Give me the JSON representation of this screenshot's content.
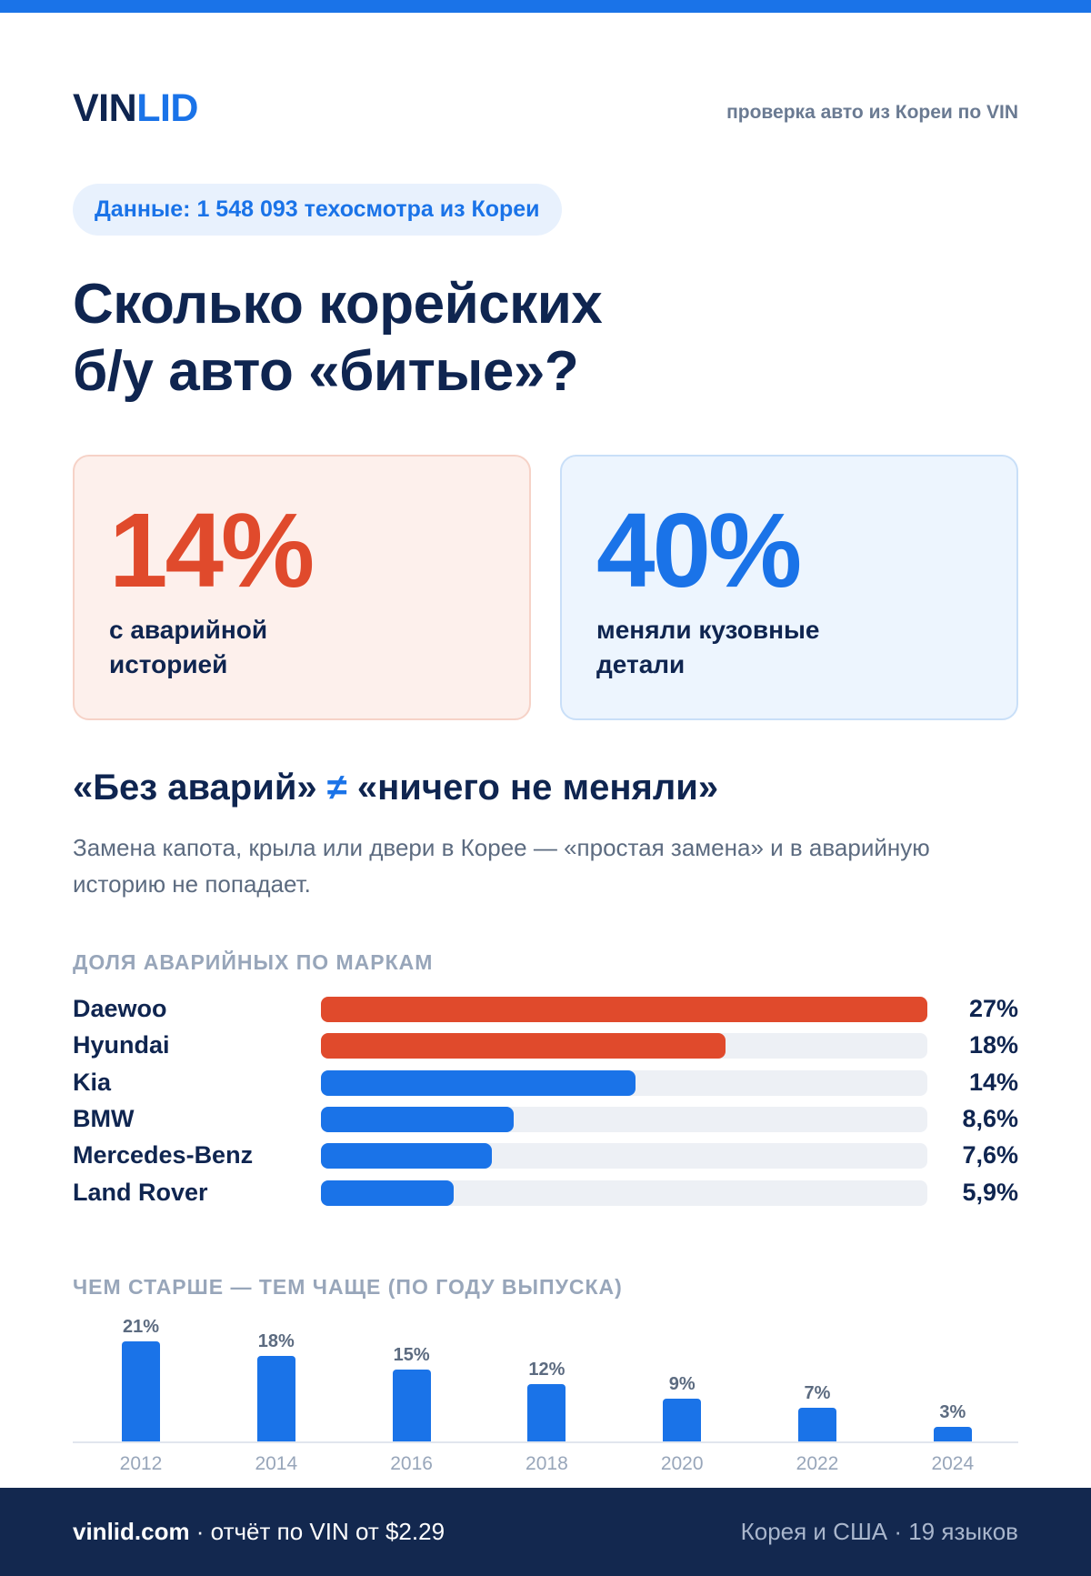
{
  "colors": {
    "accent": "#1a73e8",
    "alert": "#e04a2c",
    "navy": "#0f2550",
    "track": "#edf0f5"
  },
  "header": {
    "logo_primary": "VIN",
    "logo_accent": "LID",
    "tagline": "проверка авто из Кореи по VIN"
  },
  "data_pill": "Данные: 1 548 093 техосмотра из Кореи",
  "title": {
    "line1": "Сколько корейских",
    "line2": "б/у авто «битые»?"
  },
  "stats": [
    {
      "value": "14%",
      "label_line1": "с аварийной",
      "label_line2": "историей",
      "color": "#e04a2c"
    },
    {
      "value": "40%",
      "label_line1": "меняли кузовные",
      "label_line2": "детали",
      "color": "#1a73e8"
    }
  ],
  "subheading": {
    "left": "«Без аварий»",
    "symbol": "≠",
    "right": "«ничего не меняли»"
  },
  "description": "Замена капота, крыла или двери в Корее — «простая замена» и в аварийную историю не попадает.",
  "brands_section_title": "ДОЛЯ АВАРИЙНЫХ ПО МАРКАМ",
  "years_section_title": "ЧЕМ СТАРШЕ — ТЕМ ЧАЩЕ (ПО ГОДУ ВЫПУСКА)",
  "chart_data": [
    {
      "type": "bar",
      "orientation": "horizontal",
      "title": "ДОЛЯ АВАРИЙНЫХ ПО МАРКАМ",
      "categories": [
        "Daewoo",
        "Hyundai",
        "Kia",
        "BMW",
        "Mercedes-Benz",
        "Land Rover"
      ],
      "values": [
        27,
        18,
        14,
        8.6,
        7.6,
        5.9
      ],
      "labels": [
        "27%",
        "18%",
        "14%",
        "8,6%",
        "7,6%",
        "5,9%"
      ],
      "bar_colors": [
        "#e04a2c",
        "#e04a2c",
        "#1a73e8",
        "#1a73e8",
        "#1a73e8",
        "#1a73e8"
      ],
      "xlim": [
        0,
        27
      ],
      "grid": false
    },
    {
      "type": "bar",
      "orientation": "vertical",
      "title": "ЧЕМ СТАРШЕ — ТЕМ ЧАЩЕ (ПО ГОДУ ВЫПУСКА)",
      "categories": [
        "2012",
        "2014",
        "2016",
        "2018",
        "2020",
        "2022",
        "2024"
      ],
      "values": [
        21,
        18,
        15,
        12,
        9,
        7,
        3
      ],
      "labels": [
        "21%",
        "18%",
        "15%",
        "12%",
        "9%",
        "7%",
        "3%"
      ],
      "bar_color": "#1a73e8",
      "ylim": [
        0,
        21
      ],
      "grid": false
    }
  ],
  "footer": {
    "site": "vinlid.com",
    "offer": " · отчёт по VIN от $2.29",
    "right": "Корея и США · 19 языков"
  }
}
